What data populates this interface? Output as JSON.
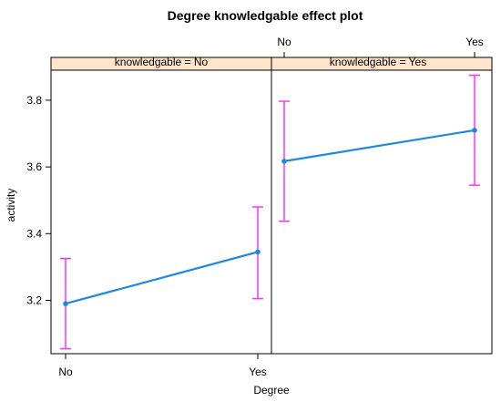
{
  "chart_data": {
    "type": "line",
    "title": "Degree knowledgable effect plot",
    "xlabel": "Degree",
    "ylabel": "activity",
    "categories": [
      "No",
      "Yes"
    ],
    "ylim": [
      3.04,
      3.89
    ],
    "yticks": [
      3.2,
      3.4,
      3.6,
      3.8
    ],
    "grid": false,
    "line_color": "#1E88E5",
    "errorbar_color": "#FF33FF",
    "panels": [
      {
        "strip": "knowledgable = No",
        "values": [
          3.19,
          3.345
        ],
        "lower": [
          3.055,
          3.205
        ],
        "upper": [
          3.325,
          3.48
        ]
      },
      {
        "strip": "knowledgable = Yes",
        "values": [
          3.617,
          3.71
        ],
        "lower": [
          3.437,
          3.545
        ],
        "upper": [
          3.797,
          3.875
        ]
      }
    ]
  }
}
